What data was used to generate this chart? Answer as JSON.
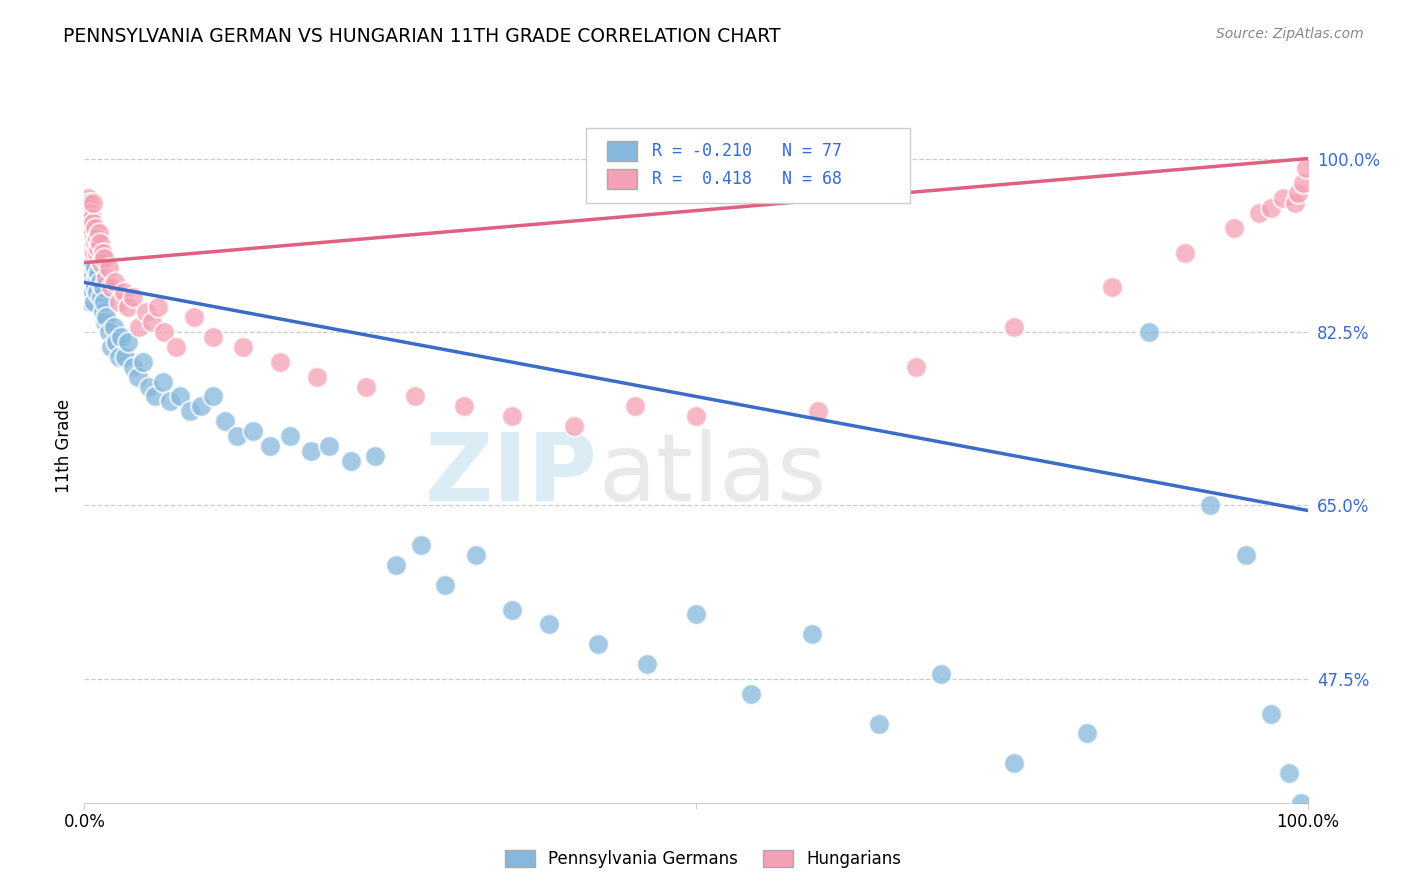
{
  "title": "PENNSYLVANIA GERMAN VS HUNGARIAN 11TH GRADE CORRELATION CHART",
  "source": "Source: ZipAtlas.com",
  "ylabel": "11th Grade",
  "r_blue": -0.21,
  "n_blue": 77,
  "r_pink": 0.418,
  "n_pink": 68,
  "legend_labels": [
    "Pennsylvania Germans",
    "Hungarians"
  ],
  "blue_color": "#85B8DC",
  "pink_color": "#F4A0B5",
  "blue_line_color": "#3A6CC8",
  "pink_line_color": "#E06080",
  "blue_trend_x0": 0.0,
  "blue_trend_y0": 0.875,
  "blue_trend_x1": 1.0,
  "blue_trend_y1": 0.645,
  "pink_trend_x0": 0.0,
  "pink_trend_y0": 0.895,
  "pink_trend_x1": 1.0,
  "pink_trend_y1": 1.0,
  "xlim": [
    0.0,
    1.0
  ],
  "ylim": [
    0.35,
    1.07
  ],
  "ytick_vals": [
    1.0,
    0.825,
    0.65,
    0.475
  ],
  "ytick_labels": [
    "100.0%",
    "82.5%",
    "65.0%",
    "47.5%"
  ],
  "blue_x": [
    0.002,
    0.003,
    0.003,
    0.004,
    0.004,
    0.005,
    0.005,
    0.005,
    0.006,
    0.006,
    0.006,
    0.007,
    0.007,
    0.008,
    0.008,
    0.009,
    0.009,
    0.01,
    0.01,
    0.011,
    0.012,
    0.013,
    0.014,
    0.015,
    0.015,
    0.016,
    0.017,
    0.018,
    0.02,
    0.022,
    0.024,
    0.026,
    0.028,
    0.03,
    0.033,
    0.036,
    0.04,
    0.044,
    0.048,
    0.053,
    0.058,
    0.064,
    0.07,
    0.078,
    0.086,
    0.095,
    0.105,
    0.115,
    0.125,
    0.138,
    0.152,
    0.168,
    0.185,
    0.2,
    0.218,
    0.238,
    0.255,
    0.275,
    0.295,
    0.32,
    0.35,
    0.38,
    0.42,
    0.46,
    0.5,
    0.545,
    0.595,
    0.65,
    0.7,
    0.76,
    0.82,
    0.87,
    0.92,
    0.95,
    0.97,
    0.985,
    0.995
  ],
  "blue_y": [
    0.895,
    0.88,
    0.91,
    0.86,
    0.875,
    0.9,
    0.87,
    0.855,
    0.89,
    0.91,
    0.88,
    0.865,
    0.895,
    0.875,
    0.855,
    0.87,
    0.89,
    0.88,
    0.865,
    0.885,
    0.9,
    0.875,
    0.86,
    0.87,
    0.845,
    0.855,
    0.835,
    0.84,
    0.825,
    0.81,
    0.83,
    0.815,
    0.8,
    0.82,
    0.8,
    0.815,
    0.79,
    0.78,
    0.795,
    0.77,
    0.76,
    0.775,
    0.755,
    0.76,
    0.745,
    0.75,
    0.76,
    0.735,
    0.72,
    0.725,
    0.71,
    0.72,
    0.705,
    0.71,
    0.695,
    0.7,
    0.59,
    0.61,
    0.57,
    0.6,
    0.545,
    0.53,
    0.51,
    0.49,
    0.54,
    0.46,
    0.52,
    0.43,
    0.48,
    0.39,
    0.42,
    0.825,
    0.65,
    0.6,
    0.44,
    0.38,
    0.35
  ],
  "pink_x": [
    0.001,
    0.002,
    0.002,
    0.003,
    0.003,
    0.003,
    0.004,
    0.004,
    0.004,
    0.005,
    0.005,
    0.005,
    0.006,
    0.006,
    0.007,
    0.007,
    0.007,
    0.008,
    0.008,
    0.009,
    0.009,
    0.01,
    0.01,
    0.011,
    0.012,
    0.013,
    0.014,
    0.015,
    0.016,
    0.018,
    0.02,
    0.022,
    0.025,
    0.028,
    0.032,
    0.036,
    0.04,
    0.045,
    0.05,
    0.055,
    0.06,
    0.065,
    0.075,
    0.09,
    0.105,
    0.13,
    0.16,
    0.19,
    0.23,
    0.27,
    0.31,
    0.35,
    0.4,
    0.45,
    0.5,
    0.6,
    0.68,
    0.76,
    0.84,
    0.9,
    0.94,
    0.96,
    0.97,
    0.98,
    0.99,
    0.992,
    0.996,
    0.999
  ],
  "pink_y": [
    0.935,
    0.95,
    0.94,
    0.96,
    0.945,
    0.925,
    0.955,
    0.935,
    0.92,
    0.93,
    0.945,
    0.91,
    0.925,
    0.94,
    0.915,
    0.935,
    0.955,
    0.92,
    0.905,
    0.93,
    0.915,
    0.905,
    0.92,
    0.91,
    0.925,
    0.915,
    0.895,
    0.905,
    0.9,
    0.88,
    0.89,
    0.87,
    0.875,
    0.855,
    0.865,
    0.85,
    0.86,
    0.83,
    0.845,
    0.835,
    0.85,
    0.825,
    0.81,
    0.84,
    0.82,
    0.81,
    0.795,
    0.78,
    0.77,
    0.76,
    0.75,
    0.74,
    0.73,
    0.75,
    0.74,
    0.745,
    0.79,
    0.83,
    0.87,
    0.905,
    0.93,
    0.945,
    0.95,
    0.96,
    0.955,
    0.965,
    0.975,
    0.99
  ]
}
